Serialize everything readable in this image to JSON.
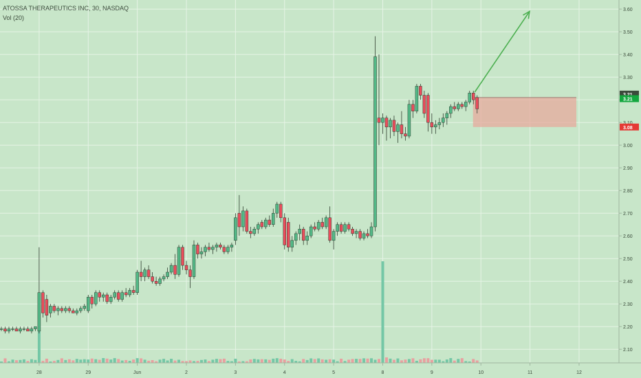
{
  "legend": {
    "symbol_line": "ATOSSA THERAPEUTICS INC, 30, NASDAQ",
    "volume_line": "Vol (20)"
  },
  "colors": {
    "background": "#c8e6c9",
    "grid": "#e6f3e6",
    "up": "#53b987",
    "down": "#eb4d5c",
    "up_volume": "#74c7a6",
    "down_volume": "#e8a0a0",
    "arrow": "#4caf50",
    "risk_box": "#e7a99c",
    "price_label_current": "#14a73f",
    "price_label_stop": "#e53935"
  },
  "chart_data": {
    "type": "candlestick",
    "y_axis": {
      "min": 2.04,
      "max": 3.64,
      "tick_labels": [
        "3.60",
        "3.50",
        "3.40",
        "3.30",
        "3.20",
        "3.10",
        "3.00",
        "2.90",
        "2.80",
        "2.70",
        "2.60",
        "2.50",
        "2.40",
        "2.30",
        "2.20",
        "2.10"
      ],
      "side": "right"
    },
    "x_axis": {
      "tick_labels": [
        "28",
        "29",
        "Jun",
        "2",
        "3",
        "4",
        "5",
        "8",
        "9",
        "10",
        "11",
        "12"
      ]
    },
    "grid": true,
    "bars_per_day": 13,
    "candles": [
      [
        2.19,
        2.2,
        2.18,
        2.19
      ],
      [
        2.19,
        2.2,
        2.17,
        2.18
      ],
      [
        2.18,
        2.2,
        2.17,
        2.19
      ],
      [
        2.19,
        2.2,
        2.18,
        2.19
      ],
      [
        2.19,
        2.2,
        2.18,
        2.18
      ],
      [
        2.18,
        2.2,
        2.17,
        2.19
      ],
      [
        2.19,
        2.2,
        2.18,
        2.19
      ],
      [
        2.19,
        2.2,
        2.18,
        2.18
      ],
      [
        2.18,
        2.2,
        2.17,
        2.19
      ],
      [
        2.19,
        2.2,
        2.18,
        2.2
      ],
      [
        2.18,
        2.55,
        2.17,
        2.35
      ],
      [
        2.35,
        2.36,
        2.24,
        2.26
      ],
      [
        2.32,
        2.34,
        2.22,
        2.25
      ],
      [
        2.26,
        2.3,
        2.24,
        2.29
      ],
      [
        2.29,
        2.3,
        2.26,
        2.27
      ],
      [
        2.27,
        2.29,
        2.25,
        2.28
      ],
      [
        2.28,
        2.29,
        2.26,
        2.27
      ],
      [
        2.27,
        2.29,
        2.26,
        2.28
      ],
      [
        2.28,
        2.29,
        2.26,
        2.27
      ],
      [
        2.27,
        2.28,
        2.26,
        2.26
      ],
      [
        2.26,
        2.28,
        2.25,
        2.27
      ],
      [
        2.27,
        2.29,
        2.26,
        2.28
      ],
      [
        2.28,
        2.3,
        2.27,
        2.29
      ],
      [
        2.27,
        2.34,
        2.26,
        2.33
      ],
      [
        2.33,
        2.34,
        2.28,
        2.3
      ],
      [
        2.3,
        2.36,
        2.29,
        2.35
      ],
      [
        2.35,
        2.36,
        2.31,
        2.33
      ],
      [
        2.33,
        2.35,
        2.31,
        2.34
      ],
      [
        2.34,
        2.35,
        2.3,
        2.31
      ],
      [
        2.31,
        2.34,
        2.3,
        2.33
      ],
      [
        2.33,
        2.36,
        2.32,
        2.35
      ],
      [
        2.35,
        2.36,
        2.31,
        2.32
      ],
      [
        2.32,
        2.36,
        2.31,
        2.35
      ],
      [
        2.35,
        2.37,
        2.33,
        2.34
      ],
      [
        2.34,
        2.37,
        2.33,
        2.36
      ],
      [
        2.36,
        2.38,
        2.34,
        2.35
      ],
      [
        2.35,
        2.45,
        2.34,
        2.44
      ],
      [
        2.44,
        2.49,
        2.4,
        2.42
      ],
      [
        2.42,
        2.46,
        2.4,
        2.45
      ],
      [
        2.45,
        2.47,
        2.41,
        2.42
      ],
      [
        2.42,
        2.44,
        2.39,
        2.4
      ],
      [
        2.4,
        2.42,
        2.38,
        2.39
      ],
      [
        2.39,
        2.42,
        2.38,
        2.41
      ],
      [
        2.41,
        2.43,
        2.4,
        2.42
      ],
      [
        2.42,
        2.46,
        2.41,
        2.44
      ],
      [
        2.44,
        2.48,
        2.43,
        2.47
      ],
      [
        2.47,
        2.52,
        2.41,
        2.43
      ],
      [
        2.43,
        2.56,
        2.42,
        2.55
      ],
      [
        2.55,
        2.56,
        2.45,
        2.47
      ],
      [
        2.47,
        2.49,
        2.43,
        2.45
      ],
      [
        2.45,
        2.47,
        2.37,
        2.42
      ],
      [
        2.42,
        2.58,
        2.41,
        2.56
      ],
      [
        2.56,
        2.57,
        2.5,
        2.52
      ],
      [
        2.52,
        2.55,
        2.5,
        2.53
      ],
      [
        2.53,
        2.56,
        2.51,
        2.55
      ],
      [
        2.55,
        2.57,
        2.53,
        2.54
      ],
      [
        2.54,
        2.56,
        2.52,
        2.55
      ],
      [
        2.55,
        2.57,
        2.53,
        2.56
      ],
      [
        2.56,
        2.57,
        2.54,
        2.55
      ],
      [
        2.55,
        2.56,
        2.52,
        2.53
      ],
      [
        2.53,
        2.56,
        2.52,
        2.55
      ],
      [
        2.55,
        2.57,
        2.53,
        2.56
      ],
      [
        2.58,
        2.7,
        2.56,
        2.68
      ],
      [
        2.7,
        2.78,
        2.6,
        2.64
      ],
      [
        2.64,
        2.73,
        2.62,
        2.71
      ],
      [
        2.71,
        2.72,
        2.61,
        2.62
      ],
      [
        2.62,
        2.64,
        2.59,
        2.61
      ],
      [
        2.61,
        2.64,
        2.6,
        2.63
      ],
      [
        2.63,
        2.66,
        2.61,
        2.65
      ],
      [
        2.66,
        2.67,
        2.63,
        2.64
      ],
      [
        2.64,
        2.68,
        2.63,
        2.67
      ],
      [
        2.67,
        2.69,
        2.64,
        2.65
      ],
      [
        2.65,
        2.72,
        2.64,
        2.7
      ],
      [
        2.7,
        2.75,
        2.68,
        2.74
      ],
      [
        2.74,
        2.75,
        2.66,
        2.68
      ],
      [
        2.68,
        2.7,
        2.54,
        2.56
      ],
      [
        2.66,
        2.68,
        2.53,
        2.55
      ],
      [
        2.55,
        2.6,
        2.53,
        2.58
      ],
      [
        2.58,
        2.62,
        2.56,
        2.61
      ],
      [
        2.61,
        2.65,
        2.58,
        2.63
      ],
      [
        2.63,
        2.64,
        2.56,
        2.58
      ],
      [
        2.58,
        2.62,
        2.56,
        2.6
      ],
      [
        2.6,
        2.65,
        2.59,
        2.64
      ],
      [
        2.64,
        2.66,
        2.62,
        2.63
      ],
      [
        2.63,
        2.67,
        2.62,
        2.66
      ],
      [
        2.66,
        2.68,
        2.63,
        2.64
      ],
      [
        2.64,
        2.69,
        2.63,
        2.68
      ],
      [
        2.68,
        2.73,
        2.57,
        2.58
      ],
      [
        2.58,
        2.63,
        2.54,
        2.62
      ],
      [
        2.62,
        2.66,
        2.6,
        2.65
      ],
      [
        2.65,
        2.66,
        2.61,
        2.62
      ],
      [
        2.62,
        2.66,
        2.61,
        2.65
      ],
      [
        2.65,
        2.66,
        2.62,
        2.63
      ],
      [
        2.63,
        2.64,
        2.6,
        2.61
      ],
      [
        2.61,
        2.63,
        2.59,
        2.62
      ],
      [
        2.62,
        2.63,
        2.58,
        2.59
      ],
      [
        2.59,
        2.62,
        2.58,
        2.61
      ],
      [
        2.61,
        2.63,
        2.59,
        2.6
      ],
      [
        2.6,
        2.66,
        2.59,
        2.64
      ],
      [
        2.64,
        3.48,
        2.62,
        3.39
      ],
      [
        3.12,
        3.4,
        3.0,
        3.1
      ],
      [
        3.1,
        3.14,
        3.05,
        3.12
      ],
      [
        3.12,
        3.13,
        3.02,
        3.08
      ],
      [
        3.08,
        3.12,
        3.03,
        3.11
      ],
      [
        3.11,
        3.13,
        3.04,
        3.06
      ],
      [
        3.06,
        3.1,
        3.01,
        3.09
      ],
      [
        3.09,
        3.15,
        3.03,
        3.05
      ],
      [
        3.05,
        3.08,
        3.02,
        3.04
      ],
      [
        3.04,
        3.2,
        3.03,
        3.18
      ],
      [
        3.18,
        3.2,
        3.12,
        3.15
      ],
      [
        3.15,
        3.27,
        3.14,
        3.26
      ],
      [
        3.26,
        3.27,
        3.2,
        3.22
      ],
      [
        3.22,
        3.24,
        3.12,
        3.14
      ],
      [
        3.22,
        3.23,
        3.06,
        3.1
      ],
      [
        3.1,
        3.14,
        3.05,
        3.08
      ],
      [
        3.08,
        3.11,
        3.05,
        3.09
      ],
      [
        3.09,
        3.12,
        3.07,
        3.1
      ],
      [
        3.1,
        3.14,
        3.08,
        3.12
      ],
      [
        3.12,
        3.15,
        3.09,
        3.14
      ],
      [
        3.14,
        3.18,
        3.12,
        3.17
      ],
      [
        3.17,
        3.19,
        3.15,
        3.16
      ],
      [
        3.16,
        3.19,
        3.15,
        3.18
      ],
      [
        3.18,
        3.19,
        3.16,
        3.17
      ],
      [
        3.17,
        3.2,
        3.15,
        3.19
      ],
      [
        3.19,
        3.24,
        3.18,
        3.23
      ],
      [
        3.23,
        3.24,
        3.18,
        3.2
      ],
      [
        3.21,
        3.22,
        3.14,
        3.16
      ]
    ],
    "volume_spike_bar": 101,
    "volume_spike_height": 0.28,
    "current_price_label": "3.21",
    "stop_price_label": "3.08",
    "annotations": {
      "risk_box": {
        "top": 3.21,
        "bottom": 3.08
      },
      "target_arrow": {
        "to_price": 3.59
      }
    }
  }
}
